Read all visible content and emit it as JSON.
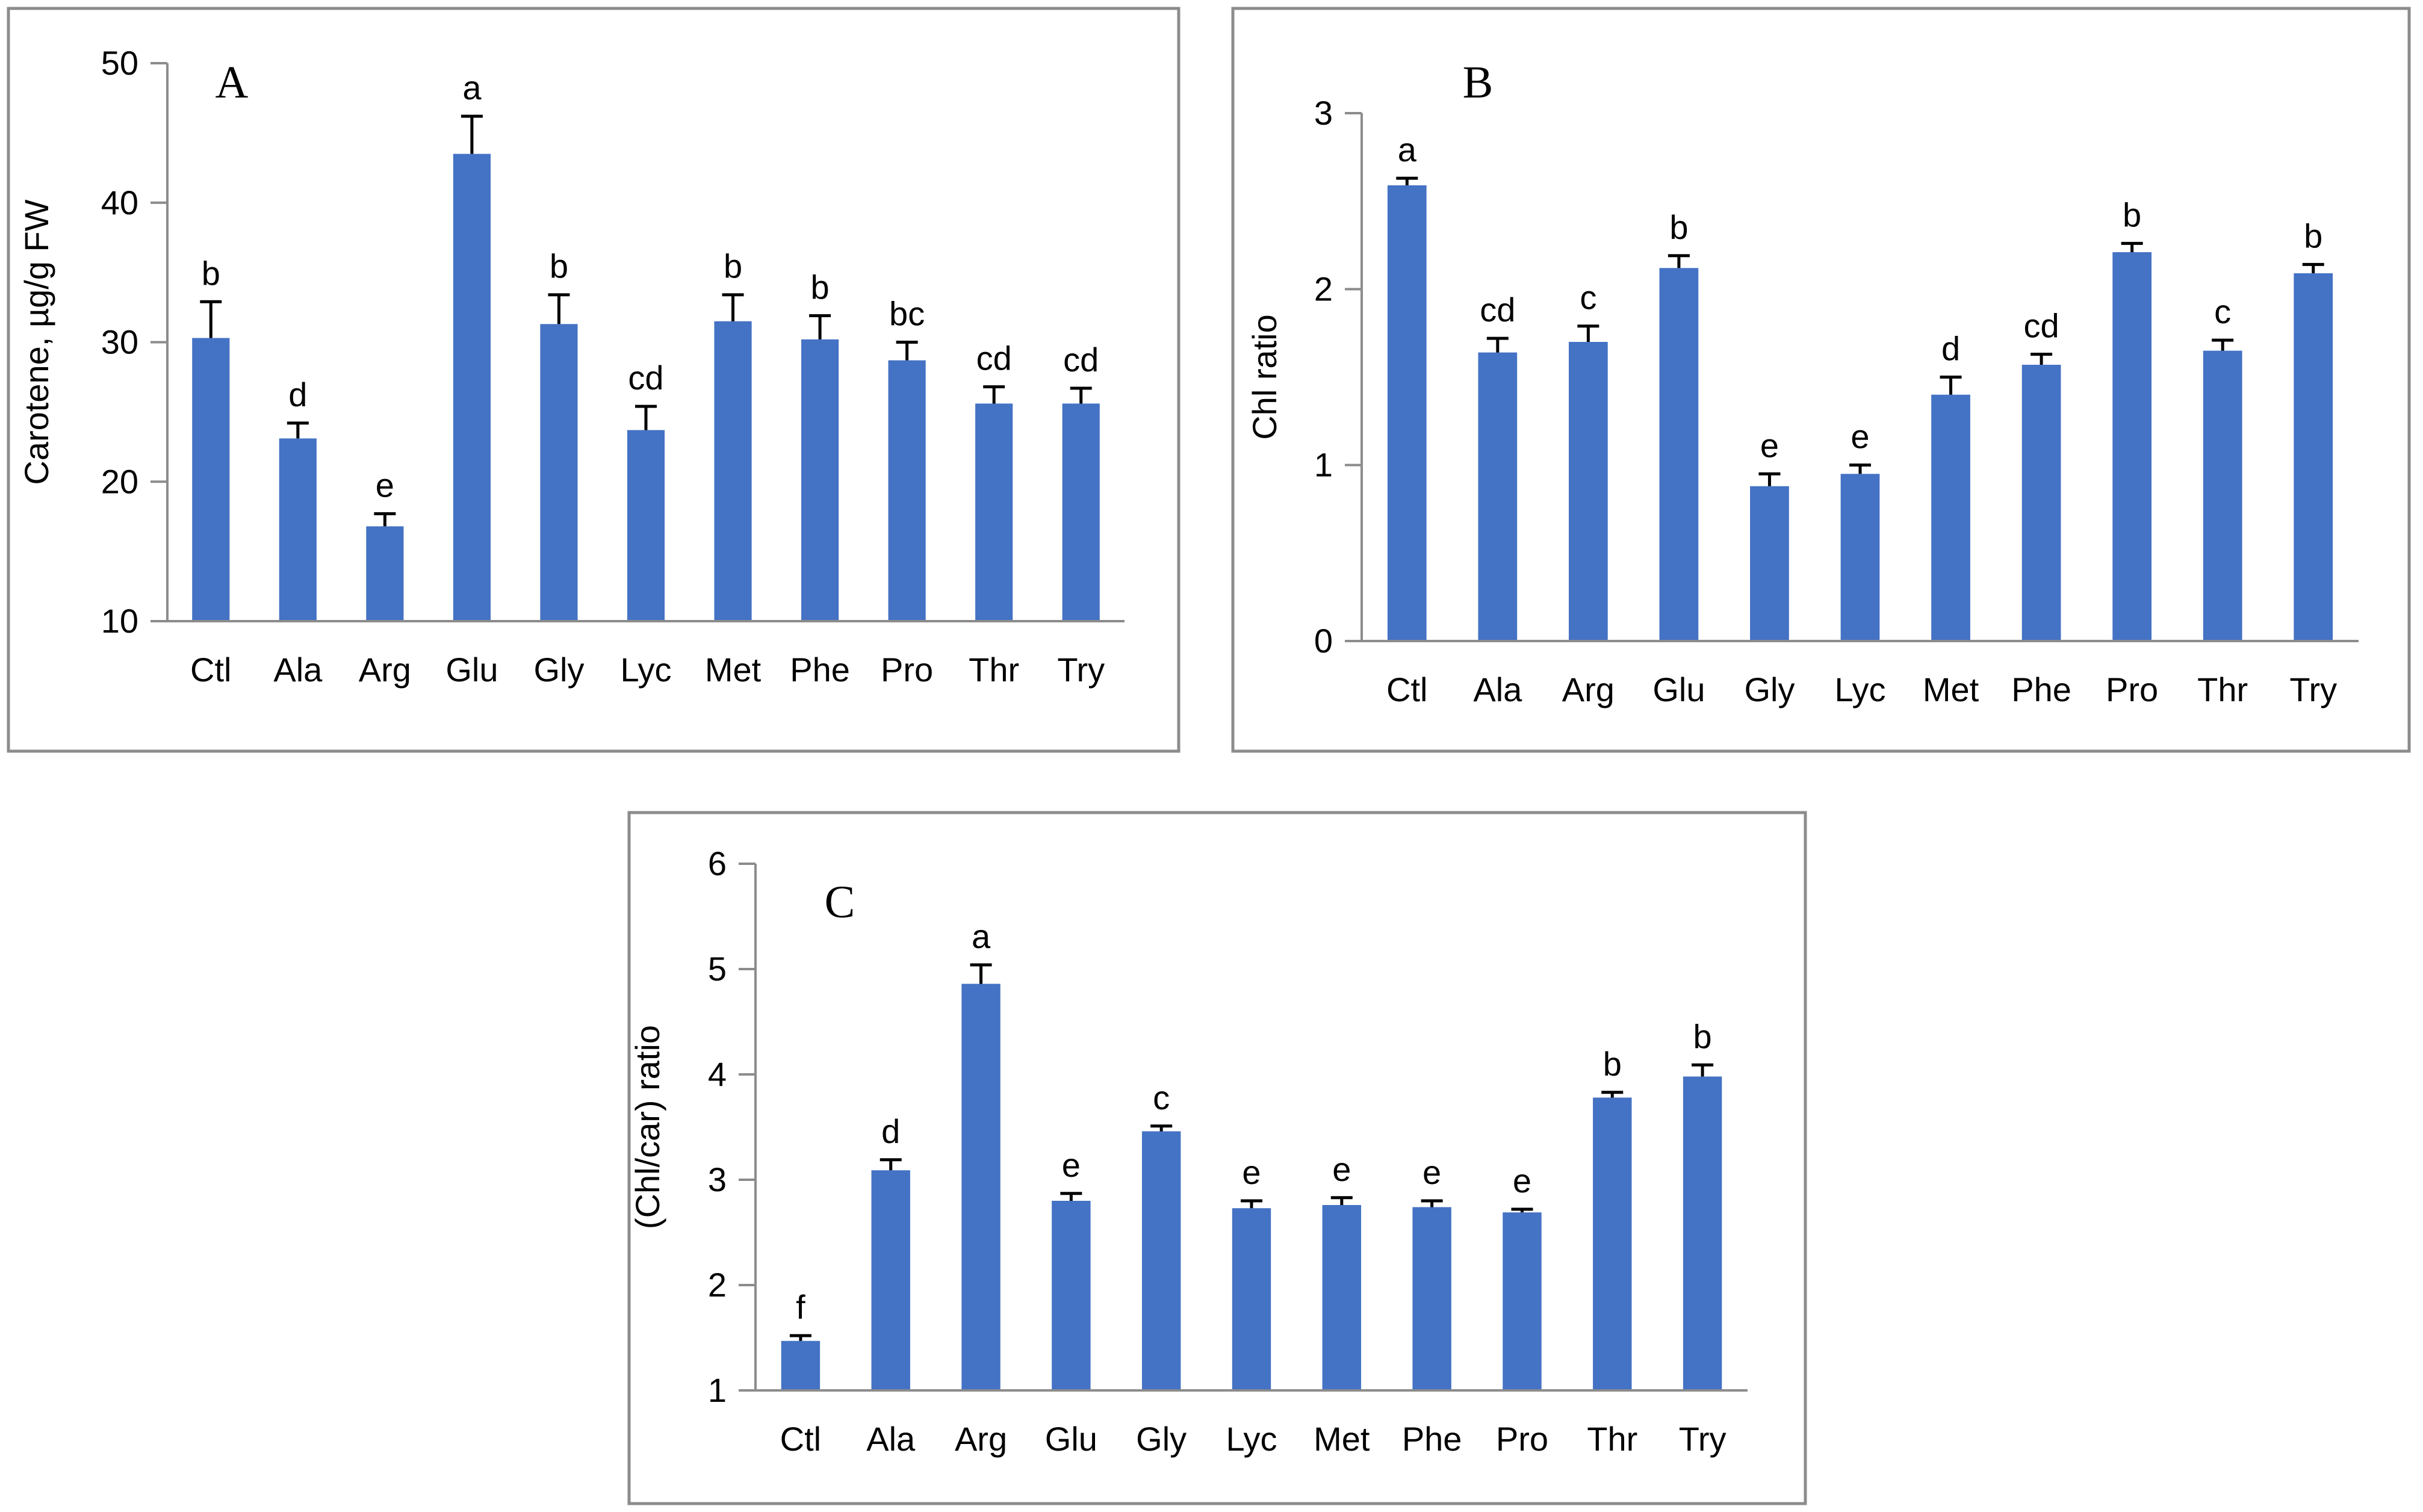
{
  "figure": {
    "colors": {
      "bar": "#4472c4",
      "error_bar": "#000000",
      "frame": "#8c8c8c"
    }
  },
  "chart_data": [
    {
      "panel": "A",
      "type": "bar",
      "title": "",
      "xlabel": "",
      "ylabel": "Carotene, µg/g FW",
      "ylim": [
        10,
        50
      ],
      "yticks": [
        10,
        20,
        30,
        40,
        50
      ],
      "categories": [
        "Ctl",
        "Ala",
        "Arg",
        "Glu",
        "Gly",
        "Lyc",
        "Met",
        "Phe",
        "Pro",
        "Thr",
        "Try"
      ],
      "values": [
        30.3,
        23.1,
        16.8,
        43.5,
        31.3,
        23.7,
        31.5,
        30.2,
        28.7,
        25.6,
        25.6
      ],
      "errors": [
        2.6,
        1.1,
        0.9,
        2.7,
        2.1,
        1.7,
        1.9,
        1.7,
        1.3,
        1.2,
        1.1
      ],
      "significance": [
        "b",
        "d",
        "e",
        "a",
        "b",
        "cd",
        "b",
        "b",
        "bc",
        "cd",
        "cd"
      ]
    },
    {
      "panel": "B",
      "type": "bar",
      "title": "",
      "xlabel": "",
      "ylabel": "Chl ratio",
      "ylim": [
        0,
        3
      ],
      "yticks": [
        0,
        1,
        2,
        3
      ],
      "categories": [
        "Ctl",
        "Ala",
        "Arg",
        "Glu",
        "Gly",
        "Lyc",
        "Met",
        "Phe",
        "Pro",
        "Thr",
        "Try"
      ],
      "values": [
        2.59,
        1.64,
        1.7,
        2.12,
        0.88,
        0.95,
        1.4,
        1.57,
        2.21,
        1.65,
        2.09
      ],
      "errors": [
        0.04,
        0.08,
        0.09,
        0.07,
        0.07,
        0.05,
        0.1,
        0.06,
        0.05,
        0.06,
        0.05
      ],
      "significance": [
        "a",
        "cd",
        "c",
        "b",
        "e",
        "e",
        "d",
        "cd",
        "b",
        "c",
        "b"
      ]
    },
    {
      "panel": "C",
      "type": "bar",
      "title": "",
      "xlabel": "",
      "ylabel": "(Chl/car) ratio",
      "ylim": [
        1,
        6
      ],
      "yticks": [
        1,
        2,
        3,
        4,
        5,
        6
      ],
      "categories": [
        "Ctl",
        "Ala",
        "Arg",
        "Glu",
        "Gly",
        "Lyc",
        "Met",
        "Phe",
        "Pro",
        "Thr",
        "Try"
      ],
      "values": [
        1.47,
        3.09,
        4.86,
        2.8,
        3.46,
        2.73,
        2.76,
        2.74,
        2.69,
        3.78,
        3.98
      ],
      "errors": [
        0.05,
        0.1,
        0.18,
        0.07,
        0.05,
        0.07,
        0.07,
        0.06,
        0.03,
        0.05,
        0.11
      ],
      "significance": [
        "f",
        "d",
        "a",
        "e",
        "c",
        "e",
        "e",
        "e",
        "e",
        "b",
        "b"
      ]
    }
  ]
}
